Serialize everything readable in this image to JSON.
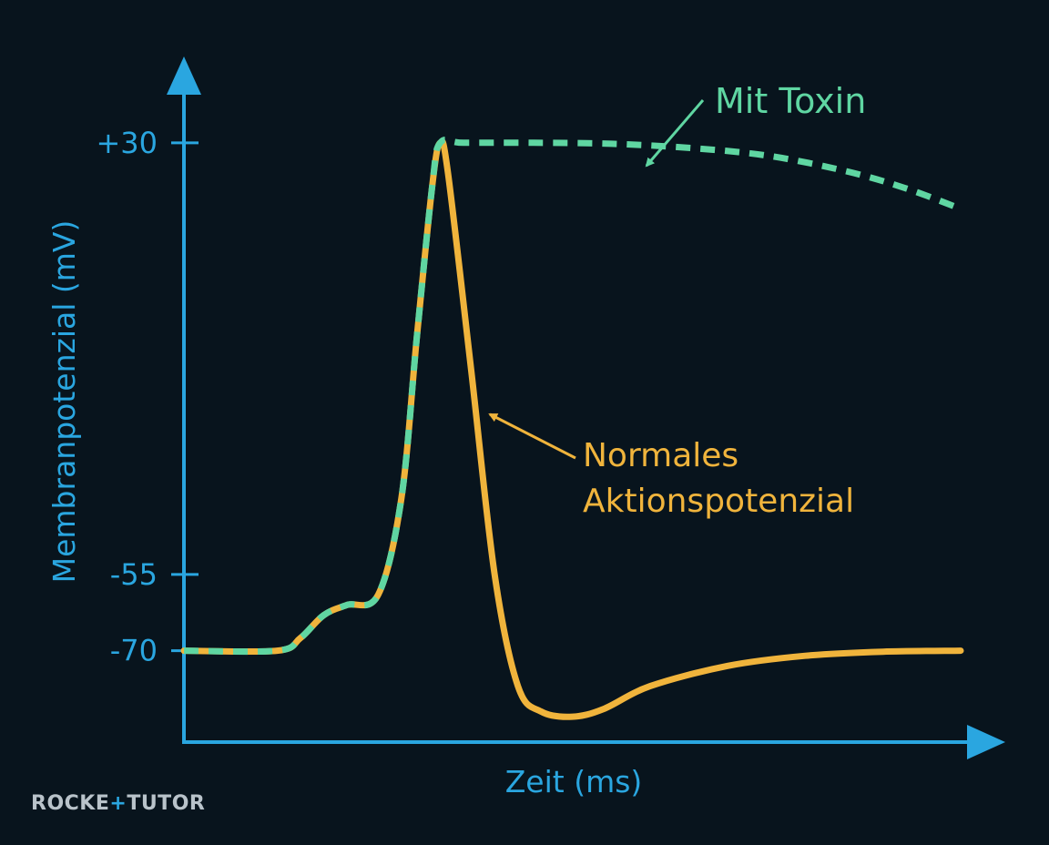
{
  "chart_data": {
    "type": "line",
    "xlabel": "Zeit (ms)",
    "ylabel": "Membranpotenzial (mV)",
    "y_ticks": [
      {
        "value": 30,
        "label": "+30"
      },
      {
        "value": -55,
        "label": "-55"
      },
      {
        "value": -70,
        "label": "-70"
      }
    ],
    "ylim": [
      -88,
      47
    ],
    "xlim": [
      0,
      10
    ],
    "series": [
      {
        "name": "Normales Aktionspotenzial",
        "color": "#f0b43c",
        "style": "solid",
        "x": [
          0,
          1.2,
          1.5,
          1.8,
          2.1,
          2.5,
          2.8,
          3.0,
          3.2,
          3.3,
          3.4,
          3.7,
          4.0,
          4.3,
          4.6,
          5.0,
          5.4,
          6.0,
          7.0,
          8.0,
          9.0,
          10.0
        ],
        "y": [
          -70,
          -70,
          -67.5,
          -63,
          -61,
          -59,
          -40,
          -8,
          22,
          30,
          24,
          -15,
          -55,
          -77,
          -82,
          -83,
          -81.5,
          -77,
          -73,
          -71,
          -70.2,
          -70
        ]
      },
      {
        "name": "Mit Toxin",
        "color": "#5fd6a2",
        "style": "dashed",
        "x": [
          0,
          1.2,
          1.5,
          1.8,
          2.1,
          2.5,
          2.8,
          3.0,
          3.2,
          3.3,
          3.6,
          4.5,
          5.5,
          6.5,
          7.5,
          8.5,
          9.3,
          10.0
        ],
        "y": [
          -70,
          -70,
          -67.5,
          -63,
          -61,
          -59,
          -40,
          -8,
          22,
          30,
          30,
          30,
          29.8,
          29,
          27.5,
          24.5,
          21,
          17
        ]
      }
    ],
    "annotations": [
      {
        "text": "Mit Toxin",
        "color": "#5fd6a2"
      },
      {
        "text": "Normales\nAktionspotenzial",
        "color": "#f0b43c"
      }
    ]
  },
  "logo": {
    "text_a": "ROCKE",
    "text_plus": "+",
    "text_b": "TUTOR"
  },
  "colors": {
    "axis": "#2aa6e0",
    "background": "#08141d"
  }
}
